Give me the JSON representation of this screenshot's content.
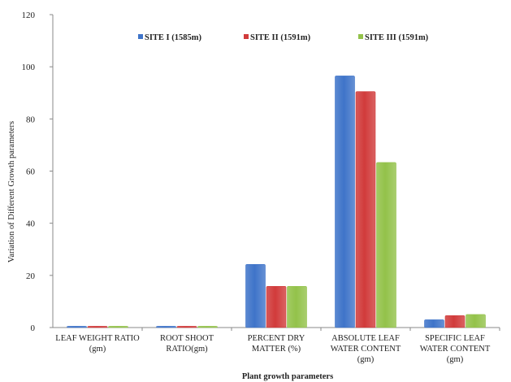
{
  "chart_data": {
    "type": "bar",
    "title": "",
    "xlabel": "Plant growth parameters",
    "ylabel": "Variation  of Different  Growth  parameters",
    "ylim": [
      0,
      120
    ],
    "yticks": [
      0,
      20,
      40,
      60,
      80,
      100,
      120
    ],
    "categories": [
      [
        "LEAF WEIGHT RATIO",
        "(gm)"
      ],
      [
        "ROOT SHOOT",
        "RATIO(gm)"
      ],
      [
        "PERCENT DRY",
        "MATTER (%)"
      ],
      [
        "ABSOLUTE LEAF",
        "WATER CONTENT",
        "(gm)"
      ],
      [
        "SPECIFIC LEAF",
        "WATER CONTENT",
        "(gm)"
      ]
    ],
    "series": [
      {
        "name": "SITE I (1585m)",
        "color": "#3f74c9",
        "values": [
          0.5,
          0.5,
          24.2,
          96.5,
          3.0
        ]
      },
      {
        "name": "SITE II (1591m)",
        "color": "#d13b3b",
        "values": [
          0.5,
          0.5,
          15.8,
          90.5,
          4.6
        ]
      },
      {
        "name": "SITE III (1591m)",
        "color": "#93c24a",
        "values": [
          0.5,
          0.5,
          15.8,
          63.3,
          5.0
        ]
      }
    ],
    "grid": false,
    "legend_position": "top"
  }
}
